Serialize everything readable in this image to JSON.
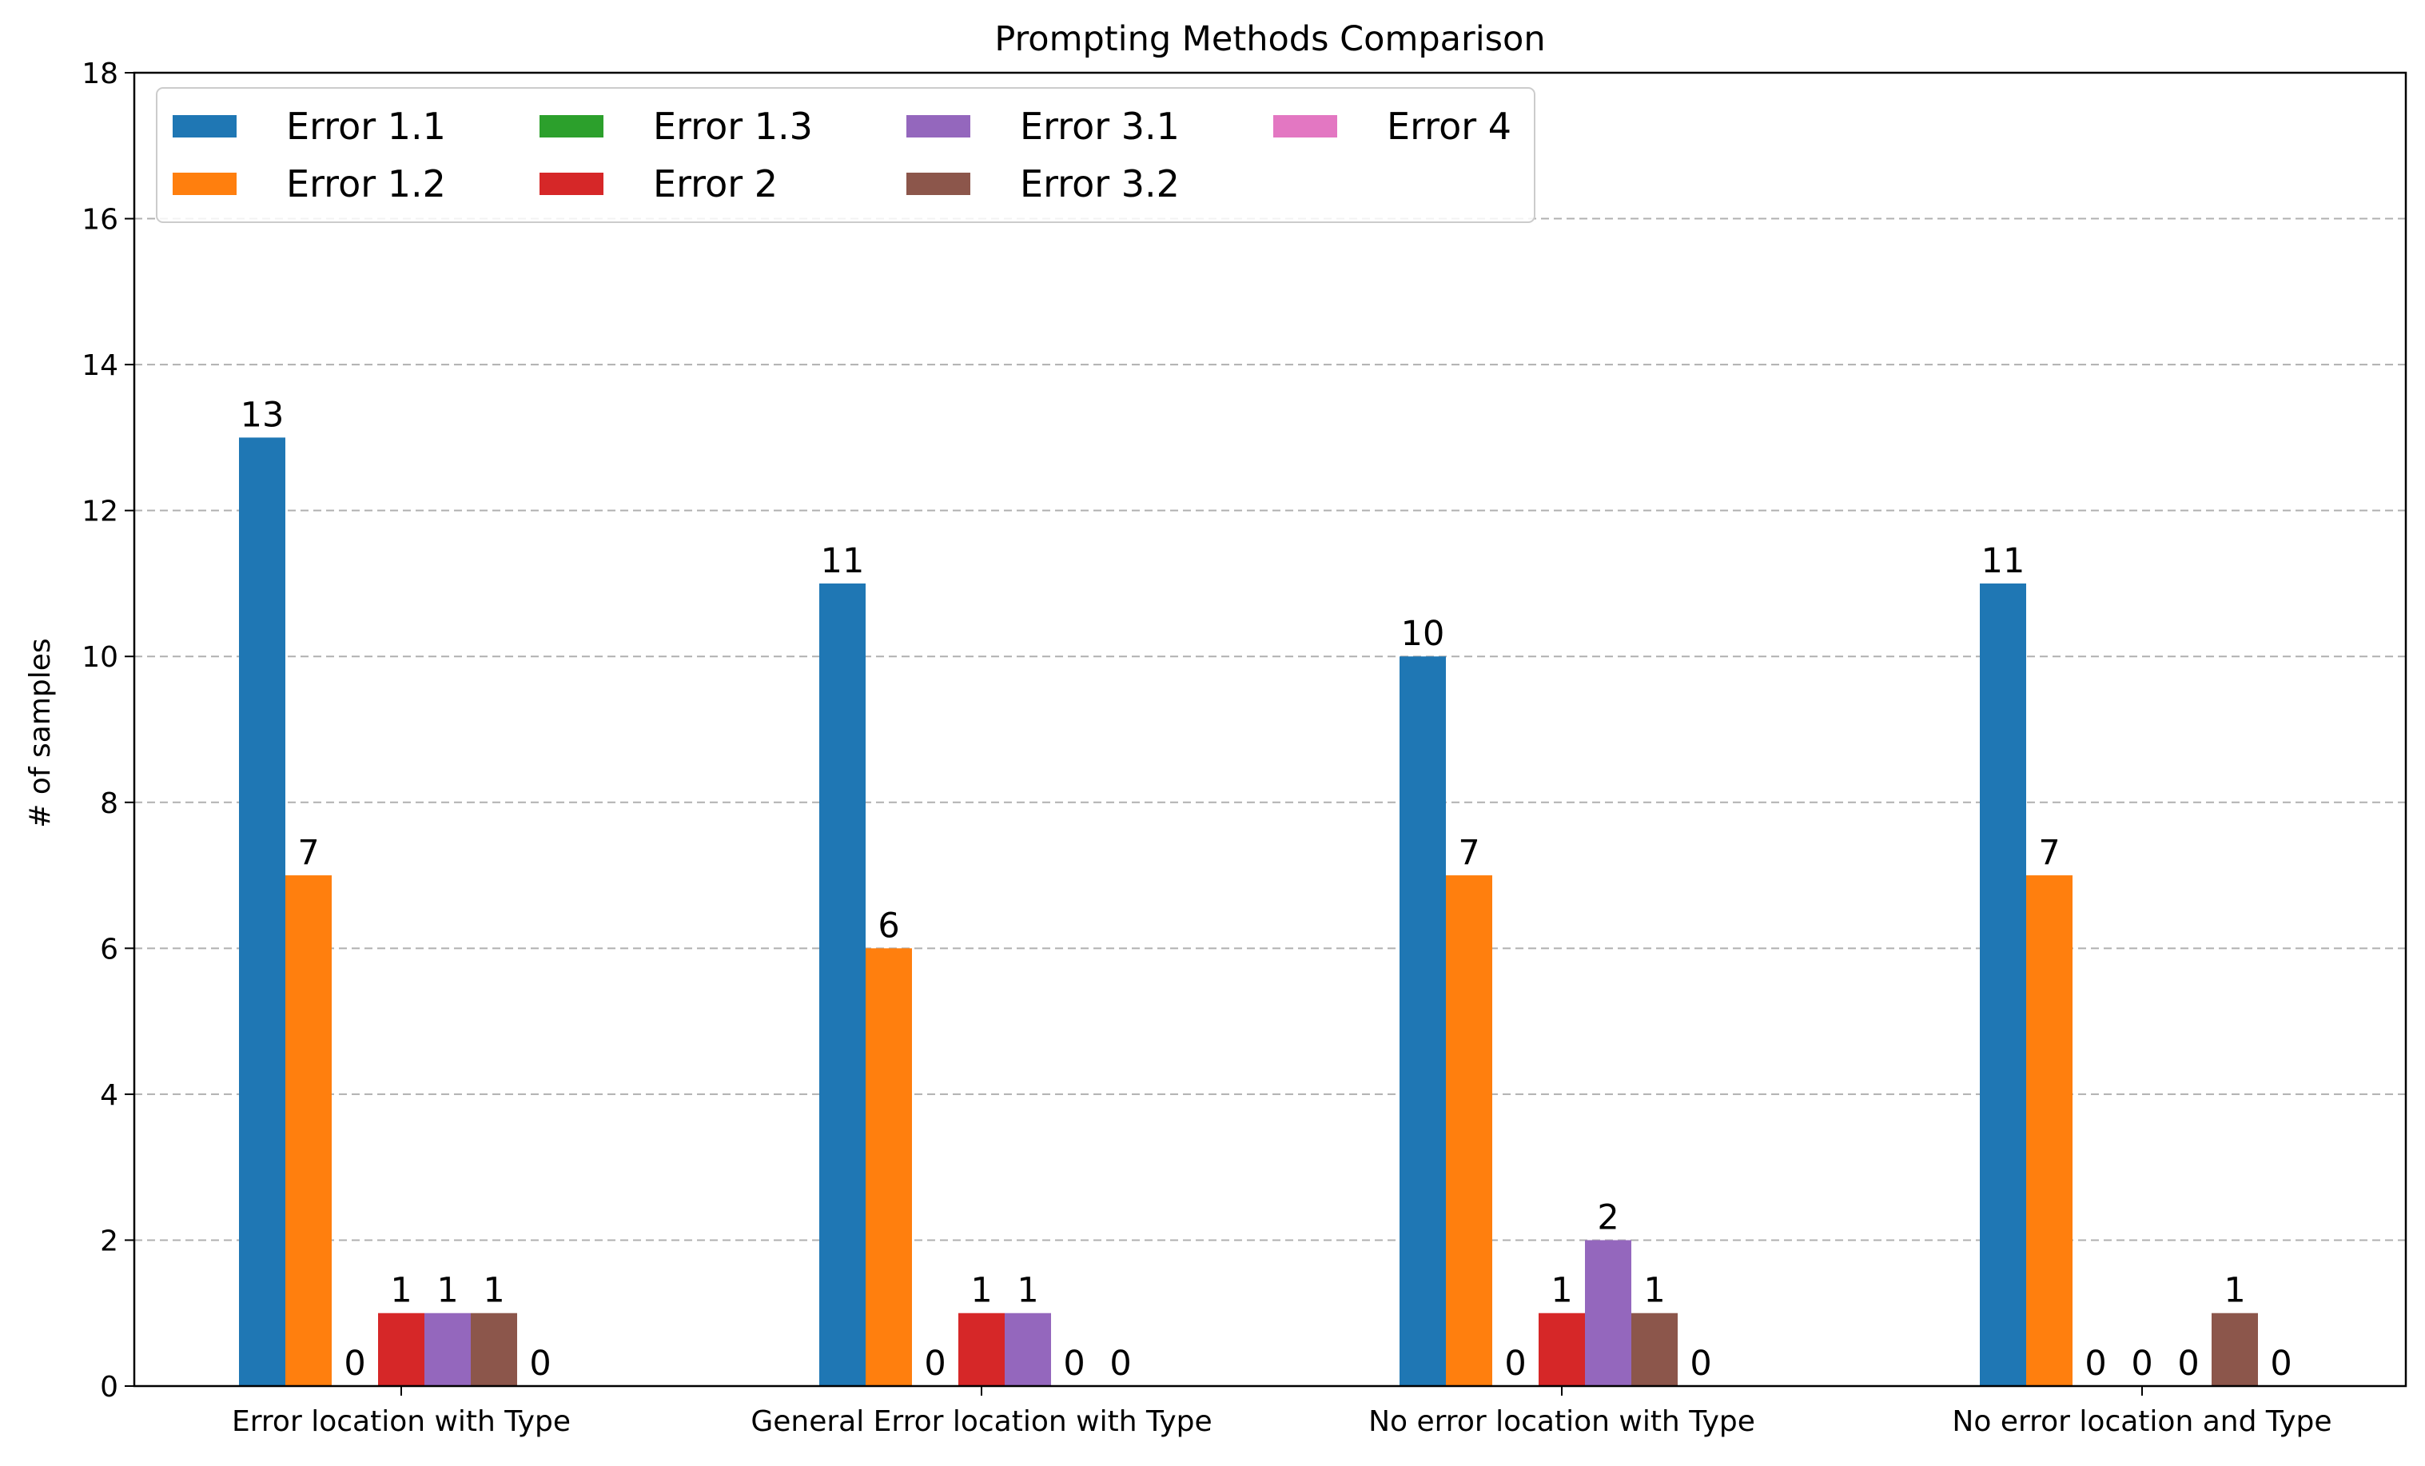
{
  "chart_data": {
    "type": "bar",
    "title": "Prompting Methods Comparison",
    "xlabel": "",
    "ylabel": "# of samples",
    "ylim": [
      0,
      18
    ],
    "yticks": [
      "0",
      "2",
      "4",
      "6",
      "8",
      "10",
      "12",
      "14",
      "16",
      "18"
    ],
    "grid": "horizontal dashed",
    "legend_position": "top-left",
    "categories": [
      "Error location with Type",
      "General Error location with Type",
      "No error location with Type",
      "No error location and Type"
    ],
    "series": [
      {
        "name": "Error 1.1",
        "color": "#1f77b4",
        "values": [
          13,
          11,
          10,
          11
        ]
      },
      {
        "name": "Error 1.2",
        "color": "#ff7f0e",
        "values": [
          7,
          6,
          7,
          7
        ]
      },
      {
        "name": "Error 1.3",
        "color": "#2ca02c",
        "values": [
          0,
          0,
          0,
          0
        ]
      },
      {
        "name": "Error 2",
        "color": "#d62728",
        "values": [
          1,
          1,
          1,
          0
        ]
      },
      {
        "name": "Error 3.1",
        "color": "#9467bd",
        "values": [
          1,
          1,
          2,
          0
        ]
      },
      {
        "name": "Error 3.2",
        "color": "#8c564b",
        "values": [
          1,
          0,
          1,
          1
        ]
      },
      {
        "name": "Error 4",
        "color": "#e377c2",
        "values": [
          0,
          0,
          0,
          0
        ]
      }
    ]
  }
}
